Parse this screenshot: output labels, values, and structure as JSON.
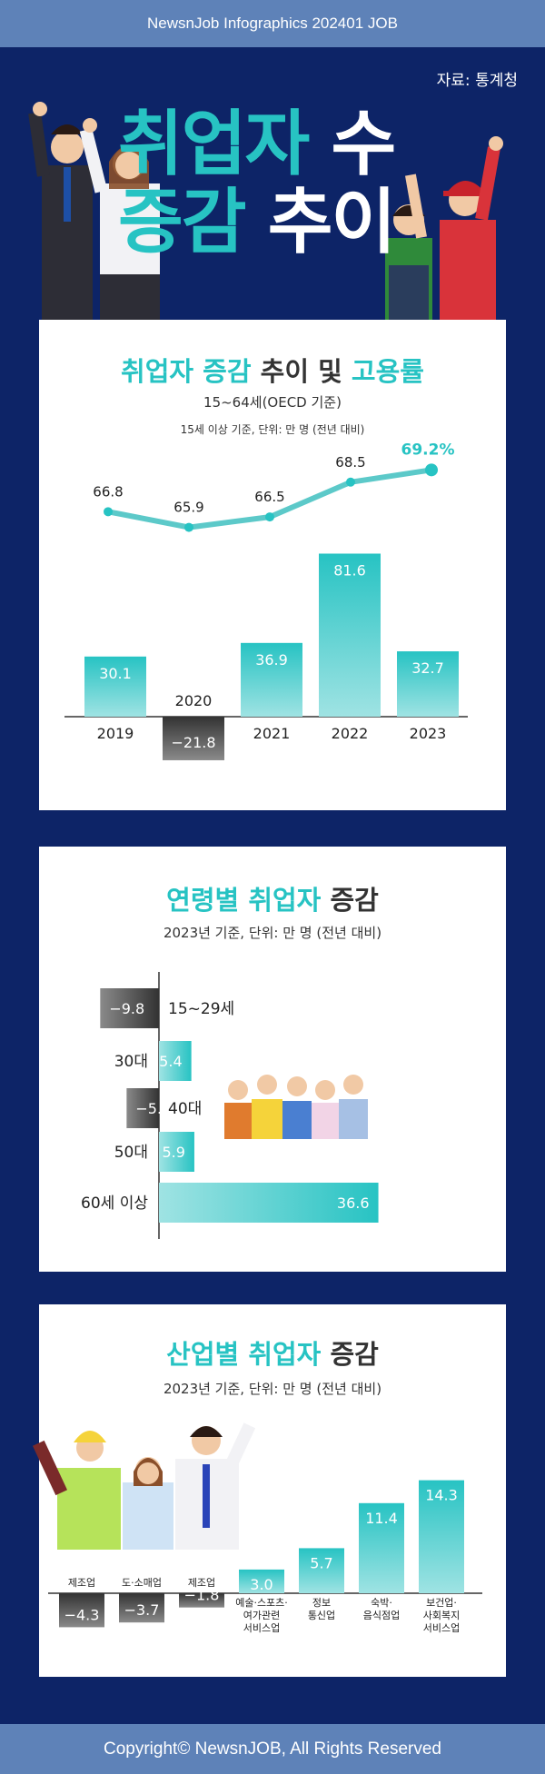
{
  "header": {
    "title": "NewsnJob Infographics 202401 JOB"
  },
  "source": "자료: 통계청",
  "hero": {
    "line1_a": "취업자",
    "line1_b": "수",
    "line2_a": "증감",
    "line2_b": "추이"
  },
  "section1": {
    "title_a": "취업자 증감",
    "title_b": "추이 및",
    "title_c": "고용률",
    "subtitle": "15~64세(OECD 기준)",
    "note": "15세 이상 기준, 단위: 만 명 (전년 대비)"
  },
  "section2": {
    "title_a": "연령별",
    "title_b": "취업자",
    "title_c": "증감",
    "note": "2023년 기준, 단위: 만 명 (전년 대비)"
  },
  "section3": {
    "title_a": "산업별",
    "title_b": "취업자",
    "title_c": "증감",
    "note": "2023년 기준, 단위: 만 명 (전년 대비)"
  },
  "footer": {
    "copyright": "Copyright© NewsnJOB, All Rights Reserved"
  },
  "colors": {
    "background": "#0d2467",
    "bar_bg": "#5e82b8",
    "teal": "#27c3c3",
    "negative": "#555555"
  },
  "chart_data": [
    {
      "type": "bar",
      "categories": [
        "2019",
        "2020",
        "2021",
        "2022",
        "2023"
      ],
      "values": [
        30.1,
        -21.8,
        36.9,
        81.6,
        32.7
      ],
      "value_labels": [
        "30.1",
        "−21.8",
        "36.9",
        "81.6",
        "32.7"
      ],
      "line_series": {
        "values": [
          66.8,
          65.9,
          66.5,
          68.5,
          69.2
        ],
        "labels": [
          "66.8",
          "65.9",
          "66.5",
          "68.5",
          "69.2%"
        ]
      }
    },
    {
      "type": "bar",
      "orientation": "horizontal",
      "categories": [
        "15~29세",
        "30대",
        "40대",
        "50대",
        "60세 이상"
      ],
      "values": [
        -9.8,
        5.4,
        -5.4,
        5.9,
        36.6
      ],
      "value_labels": [
        "−9.8",
        "5.4",
        "−5.4",
        "5.9",
        "36.6"
      ]
    },
    {
      "type": "bar",
      "categories": [
        "제조업",
        "도·소매업",
        "제조업",
        "예술·스포츠·여가관련 서비스업",
        "정보 통신업",
        "숙박· 음식점업",
        "보건업· 사회복지 서비스업"
      ],
      "category_lines": [
        [
          "제조업"
        ],
        [
          "도·소매업"
        ],
        [
          "제조업"
        ],
        [
          "예술·스포츠·",
          "여가관련",
          "서비스업"
        ],
        [
          "정보",
          "통신업"
        ],
        [
          "숙박·",
          "음식점업"
        ],
        [
          "보건업·",
          "사회복지",
          "서비스업"
        ]
      ],
      "values": [
        -4.3,
        -3.7,
        -1.8,
        3.0,
        5.7,
        11.4,
        14.3
      ],
      "value_labels": [
        "−4.3",
        "−3.7",
        "−1.8",
        "3.0",
        "5.7",
        "11.4",
        "14.3"
      ]
    }
  ]
}
